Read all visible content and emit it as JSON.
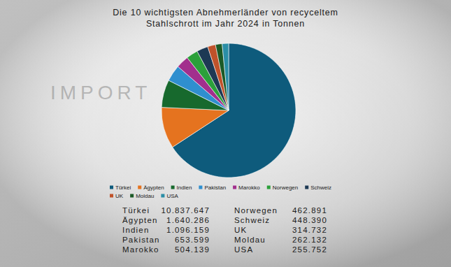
{
  "chart_data": {
    "type": "pie",
    "title": "Die 10 wichtigsten Abnehmerländer von recyceltem\nStahlschrott im Jahr 2024 in Tonnen",
    "annotations": [
      "IMPORT"
    ],
    "categories": [
      "Türkei",
      "Ägypten",
      "Indien",
      "Pakistan",
      "Marokko",
      "Norwegen",
      "Schweiz",
      "UK",
      "Moldau",
      "USA"
    ],
    "values": [
      10837647,
      1640286,
      1096159,
      653599,
      504139,
      462891,
      448390,
      314732,
      262132,
      255752
    ],
    "value_labels": [
      "10.837.647",
      "1.640.286",
      "1.096.159",
      "653.599",
      "504.139",
      "462.891",
      "448.390",
      "314.732",
      "262.132",
      "255.752"
    ],
    "colors": [
      "#0e5b7c",
      "#e5731f",
      "#17692d",
      "#2f8fcf",
      "#a22f8d",
      "#2ba03a",
      "#1d3954",
      "#c0522a",
      "#1c5a27",
      "#2b8ea6"
    ],
    "legend": "bottom"
  }
}
